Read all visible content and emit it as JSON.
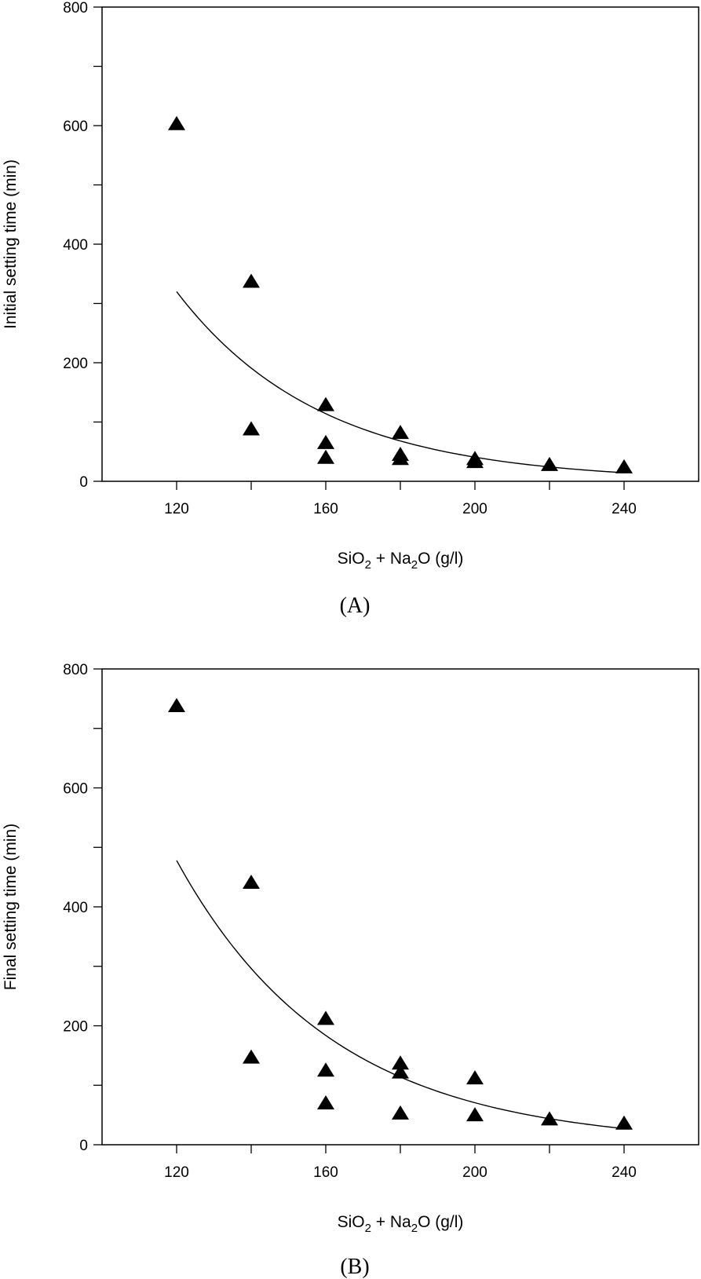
{
  "chart_data": [
    {
      "type": "scatter",
      "panel_label": "(A)",
      "xlabel_parts": [
        "SiO",
        "2",
        " + Na",
        "2",
        "O (g/l)"
      ],
      "ylabel": "Initial setting time (min)",
      "xlim": [
        100,
        260
      ],
      "ylim": [
        0,
        800
      ],
      "xticks": [
        120,
        160,
        200,
        240
      ],
      "xtick_labels": [
        "120",
        "160",
        "200",
        "240"
      ],
      "xminor": [
        140,
        180,
        220
      ],
      "yticks": [
        0,
        200,
        400,
        600,
        800
      ],
      "ytick_labels": [
        "0",
        "200",
        "400",
        "600",
        "800"
      ],
      "yminor": [
        100,
        300,
        500,
        700
      ],
      "marker": "triangle",
      "points": [
        {
          "x": 120,
          "y": 603
        },
        {
          "x": 140,
          "y": 337
        },
        {
          "x": 140,
          "y": 88
        },
        {
          "x": 160,
          "y": 129
        },
        {
          "x": 160,
          "y": 65
        },
        {
          "x": 160,
          "y": 40
        },
        {
          "x": 180,
          "y": 82
        },
        {
          "x": 180,
          "y": 45
        },
        {
          "x": 180,
          "y": 38
        },
        {
          "x": 200,
          "y": 38
        },
        {
          "x": 200,
          "y": 33
        },
        {
          "x": 220,
          "y": 28
        },
        {
          "x": 240,
          "y": 24
        }
      ],
      "fit": {
        "type": "exponential",
        "a": 320,
        "b": 0.0258,
        "x0": 120,
        "x_range": [
          120,
          240
        ]
      }
    },
    {
      "type": "scatter",
      "panel_label": "(B)",
      "xlabel_parts": [
        "SiO",
        "2",
        " + Na",
        "2",
        "O (g/l)"
      ],
      "ylabel": "Final setting time (min)",
      "xlim": [
        100,
        260
      ],
      "ylim": [
        0,
        800
      ],
      "xticks": [
        120,
        160,
        200,
        240
      ],
      "xtick_labels": [
        "120",
        "160",
        "200",
        "240"
      ],
      "xminor": [
        140,
        180,
        220
      ],
      "yticks": [
        0,
        200,
        400,
        600,
        800
      ],
      "ytick_labels": [
        "0",
        "200",
        "400",
        "600",
        "800"
      ],
      "yminor": [
        100,
        300,
        500,
        700
      ],
      "marker": "triangle",
      "points": [
        {
          "x": 120,
          "y": 738
        },
        {
          "x": 140,
          "y": 441
        },
        {
          "x": 140,
          "y": 147
        },
        {
          "x": 160,
          "y": 212
        },
        {
          "x": 160,
          "y": 125
        },
        {
          "x": 160,
          "y": 70
        },
        {
          "x": 180,
          "y": 137
        },
        {
          "x": 180,
          "y": 122
        },
        {
          "x": 180,
          "y": 53
        },
        {
          "x": 200,
          "y": 112
        },
        {
          "x": 200,
          "y": 50
        },
        {
          "x": 220,
          "y": 43
        },
        {
          "x": 240,
          "y": 36
        }
      ],
      "fit": {
        "type": "exponential",
        "a": 478,
        "b": 0.0239,
        "x0": 120,
        "x_range": [
          120,
          240
        ]
      }
    }
  ]
}
